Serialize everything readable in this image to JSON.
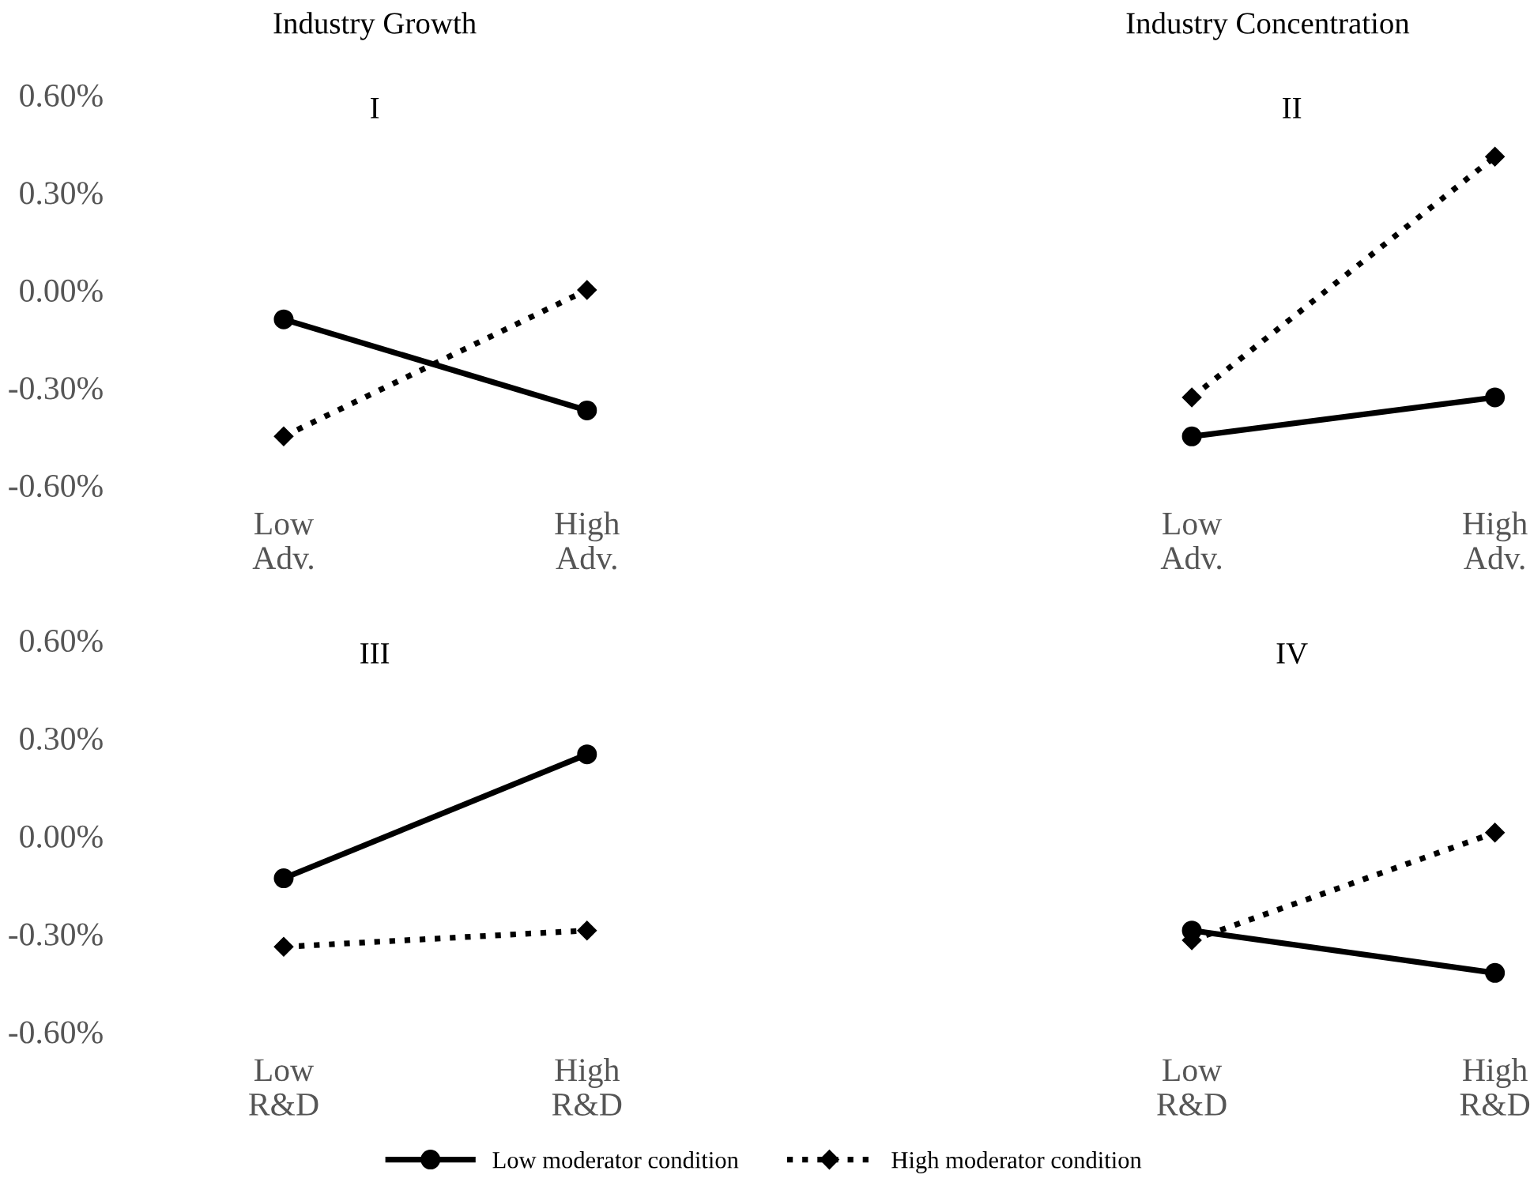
{
  "chart_data": [
    {
      "type": "line",
      "title": "Industry Growth",
      "subtitle": "I",
      "categories": [
        "Low\nAdv.",
        "High\nAdv."
      ],
      "ylim": [
        -0.6,
        0.6
      ],
      "yticks": [
        {
          "value": 0.6,
          "label": "0.60%"
        },
        {
          "value": 0.3,
          "label": "0.30%"
        },
        {
          "value": 0.0,
          "label": "0.00%"
        },
        {
          "value": -0.3,
          "label": "-0.30%"
        },
        {
          "value": -0.6,
          "label": "-0.60%"
        }
      ],
      "legend": "bottom",
      "series": [
        {
          "name": "Low moderator condition",
          "color": "#000000",
          "marker": "circle",
          "line_style": "solid",
          "values": [
            -0.09,
            -0.37
          ]
        },
        {
          "name": "High moderator condition",
          "color": "#000000",
          "marker": "diamond",
          "line_style": "dotted",
          "values": [
            -0.45,
            0.0
          ]
        }
      ]
    },
    {
      "type": "line",
      "title": "Industry Concentration",
      "subtitle": "II",
      "categories": [
        "Low\nAdv.",
        "High\nAdv."
      ],
      "ylim": [
        -0.6,
        0.6
      ],
      "tick_labels": "x",
      "series": [
        {
          "color": "#000000",
          "marker": "circle",
          "line_style": "solid",
          "values": [
            -0.45,
            -0.33
          ]
        },
        {
          "color": "#000000",
          "marker": "diamond",
          "line_style": "dotted",
          "values": [
            -0.33,
            0.41
          ]
        }
      ]
    },
    {
      "type": "line",
      "subtitle": "III",
      "categories": [
        "Low\nR&D",
        "High\nR&D"
      ],
      "ylim": [
        -0.6,
        0.6
      ],
      "yticks": [
        {
          "value": 0.6,
          "label": "0.60%"
        },
        {
          "value": 0.3,
          "label": "0.30%"
        },
        {
          "value": 0.0,
          "label": "0.00%"
        },
        {
          "value": -0.3,
          "label": "-0.30%"
        },
        {
          "value": -0.6,
          "label": "-0.60%"
        }
      ],
      "series": [
        {
          "color": "#000000",
          "marker": "circle",
          "line_style": "solid",
          "values": [
            -0.13,
            0.25
          ]
        },
        {
          "color": "#000000",
          "marker": "diamond",
          "line_style": "dotted",
          "values": [
            -0.34,
            -0.29
          ]
        }
      ]
    },
    {
      "type": "line",
      "subtitle": "IV",
      "categories": [
        "Low\nR&D",
        "High\nR&D"
      ],
      "ylim": [
        -0.6,
        0.6
      ],
      "tick_labels": "x",
      "series": [
        {
          "color": "#000000",
          "marker": "circle",
          "line_style": "solid",
          "values": [
            -0.29,
            -0.42
          ]
        },
        {
          "color": "#000000",
          "marker": "diamond",
          "line_style": "dotted",
          "values": [
            -0.32,
            0.01
          ]
        }
      ]
    }
  ]
}
